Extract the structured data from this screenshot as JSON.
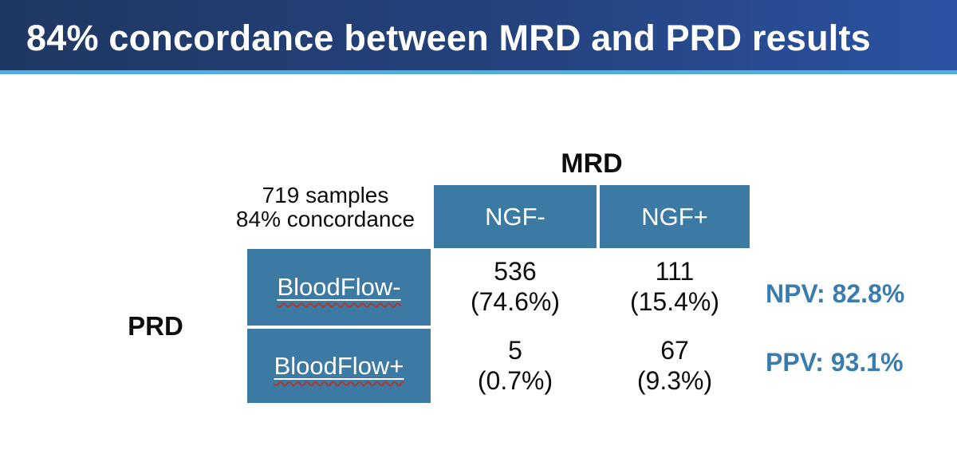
{
  "slide": {
    "title": "84% concordance between MRD and PRD results"
  },
  "matrix": {
    "column_axis_label": "MRD",
    "row_axis_label": "PRD",
    "summary_line1": "719 samples",
    "summary_line2": "84% concordance",
    "column_headers": [
      "NGF-",
      "NGF+"
    ],
    "row_headers": [
      "BloodFlow-",
      "BloodFlow+"
    ],
    "cells": [
      {
        "count": "536",
        "percent": "(74.6%)"
      },
      {
        "count": "111",
        "percent": "(15.4%)"
      },
      {
        "count": "5",
        "percent": "(0.7%)"
      },
      {
        "count": "67",
        "percent": "(9.3%)"
      }
    ],
    "npv": "NPV: 82.8%",
    "ppv": "PPV: 93.1%"
  },
  "colors": {
    "titlebar_gradient_start": "#1f3862",
    "titlebar_gradient_end": "#2b53a2",
    "titlebar_accent_line": "#56aadd",
    "table_cell_blue": "#3d7aa3",
    "metric_text_blue": "#3a7cae",
    "squiggle_red": "#ab392e",
    "body_text": "#0d0d0d",
    "title_text": "#ffffff"
  },
  "chart_data": {
    "type": "table",
    "title": "84% concordance between MRD and PRD results",
    "column_axis": "MRD",
    "row_axis": "PRD",
    "columns": [
      "NGF-",
      "NGF+"
    ],
    "rows": [
      "BloodFlow-",
      "BloodFlow+"
    ],
    "counts": [
      [
        536,
        111
      ],
      [
        5,
        67
      ]
    ],
    "percents": [
      [
        74.6,
        15.4
      ],
      [
        0.7,
        9.3
      ]
    ],
    "total_samples": 719,
    "concordance_percent": 84,
    "npv_percent": 82.8,
    "ppv_percent": 93.1
  }
}
